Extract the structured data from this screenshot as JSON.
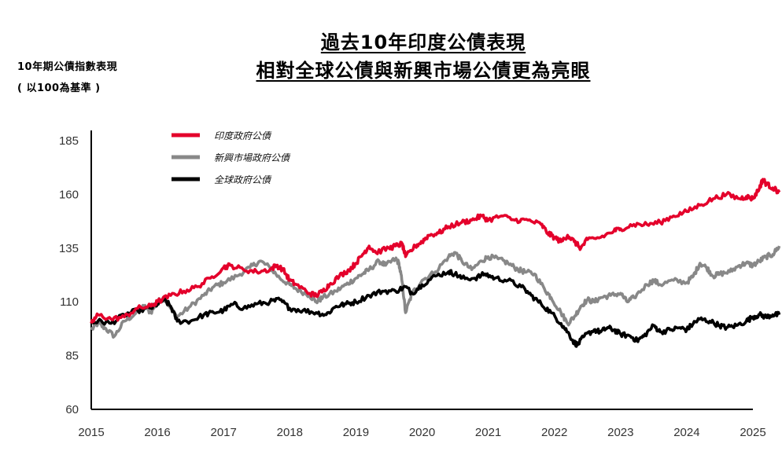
{
  "title_line1": "過去10年印度公債表現",
  "title_line2": "相對全球公債與新興市場公債更為亮眼",
  "chart_data": {
    "type": "line",
    "ylabel_line1": "10年期公債指數表現",
    "ylabel_line2": "( 以100為基準 )",
    "xlabel": "",
    "xlim": [
      2015,
      2025
    ],
    "ylim": [
      60,
      185
    ],
    "x_ticks": [
      2015,
      2016,
      2017,
      2018,
      2019,
      2020,
      2021,
      2022,
      2023,
      2024,
      2025
    ],
    "y_ticks": [
      60,
      85,
      110,
      135,
      160,
      185
    ],
    "grid": false,
    "legend_position": "top-left",
    "series": [
      {
        "name": "印度政府公債",
        "color": "#e4002b",
        "points": [
          [
            2015.0,
            100
          ],
          [
            2015.1,
            104
          ],
          [
            2015.3,
            102
          ],
          [
            2015.5,
            103
          ],
          [
            2015.7,
            107
          ],
          [
            2015.9,
            108
          ],
          [
            2016.0,
            110
          ],
          [
            2016.2,
            113
          ],
          [
            2016.4,
            115
          ],
          [
            2016.6,
            117
          ],
          [
            2016.8,
            121
          ],
          [
            2017.0,
            126
          ],
          [
            2017.1,
            127
          ],
          [
            2017.3,
            125
          ],
          [
            2017.5,
            124
          ],
          [
            2017.7,
            125
          ],
          [
            2017.8,
            127
          ],
          [
            2017.9,
            125
          ],
          [
            2018.0,
            120
          ],
          [
            2018.1,
            118
          ],
          [
            2018.3,
            114
          ],
          [
            2018.4,
            113
          ],
          [
            2018.5,
            115
          ],
          [
            2018.6,
            118
          ],
          [
            2018.75,
            122
          ],
          [
            2018.9,
            125
          ],
          [
            2019.0,
            128
          ],
          [
            2019.1,
            132
          ],
          [
            2019.2,
            136
          ],
          [
            2019.3,
            133
          ],
          [
            2019.5,
            135
          ],
          [
            2019.6,
            136
          ],
          [
            2019.7,
            137
          ],
          [
            2019.75,
            131
          ],
          [
            2019.9,
            136
          ],
          [
            2020.0,
            138
          ],
          [
            2020.1,
            141
          ],
          [
            2020.25,
            142
          ],
          [
            2020.4,
            145
          ],
          [
            2020.6,
            147
          ],
          [
            2020.75,
            148
          ],
          [
            2020.9,
            150
          ],
          [
            2021.0,
            148
          ],
          [
            2021.2,
            150
          ],
          [
            2021.4,
            148
          ],
          [
            2021.6,
            148
          ],
          [
            2021.8,
            146
          ],
          [
            2021.9,
            142
          ],
          [
            2022.0,
            140
          ],
          [
            2022.1,
            138
          ],
          [
            2022.2,
            141
          ],
          [
            2022.3,
            138
          ],
          [
            2022.4,
            135
          ],
          [
            2022.5,
            139
          ],
          [
            2022.7,
            140
          ],
          [
            2022.9,
            143
          ],
          [
            2023.0,
            144
          ],
          [
            2023.2,
            146
          ],
          [
            2023.4,
            146
          ],
          [
            2023.6,
            147
          ],
          [
            2023.8,
            150
          ],
          [
            2024.0,
            152
          ],
          [
            2024.2,
            155
          ],
          [
            2024.4,
            158
          ],
          [
            2024.6,
            160
          ],
          [
            2024.8,
            158
          ],
          [
            2024.9,
            159
          ],
          [
            2025.0,
            158
          ],
          [
            2025.1,
            163
          ],
          [
            2025.15,
            167
          ],
          [
            2025.2,
            165
          ],
          [
            2025.3,
            163
          ],
          [
            2025.4,
            161
          ]
        ]
      },
      {
        "name": "新興市場政府公債",
        "color": "#888888",
        "points": [
          [
            2015.0,
            97
          ],
          [
            2015.1,
            100
          ],
          [
            2015.2,
            98
          ],
          [
            2015.35,
            94
          ],
          [
            2015.5,
            101
          ],
          [
            2015.65,
            104
          ],
          [
            2015.8,
            108
          ],
          [
            2015.9,
            105
          ],
          [
            2016.0,
            110
          ],
          [
            2016.1,
            112
          ],
          [
            2016.2,
            107
          ],
          [
            2016.3,
            103
          ],
          [
            2016.5,
            108
          ],
          [
            2016.7,
            113
          ],
          [
            2016.85,
            117
          ],
          [
            2017.0,
            119
          ],
          [
            2017.2,
            122
          ],
          [
            2017.4,
            126
          ],
          [
            2017.55,
            129
          ],
          [
            2017.7,
            126
          ],
          [
            2017.85,
            121
          ],
          [
            2018.0,
            118
          ],
          [
            2018.1,
            116
          ],
          [
            2018.3,
            113
          ],
          [
            2018.4,
            110
          ],
          [
            2018.5,
            112
          ],
          [
            2018.7,
            115
          ],
          [
            2018.85,
            118
          ],
          [
            2019.0,
            121
          ],
          [
            2019.1,
            123
          ],
          [
            2019.2,
            125
          ],
          [
            2019.35,
            129
          ],
          [
            2019.45,
            127
          ],
          [
            2019.6,
            130
          ],
          [
            2019.65,
            128
          ],
          [
            2019.7,
            119
          ],
          [
            2019.75,
            105
          ],
          [
            2019.85,
            114
          ],
          [
            2020.0,
            120
          ],
          [
            2020.2,
            124
          ],
          [
            2020.4,
            131
          ],
          [
            2020.5,
            133
          ],
          [
            2020.6,
            129
          ],
          [
            2020.75,
            125
          ],
          [
            2020.9,
            129
          ],
          [
            2021.0,
            131
          ],
          [
            2021.15,
            130
          ],
          [
            2021.3,
            128
          ],
          [
            2021.45,
            125
          ],
          [
            2021.55,
            124
          ],
          [
            2021.7,
            123
          ],
          [
            2021.85,
            116
          ],
          [
            2021.95,
            112
          ],
          [
            2022.1,
            105
          ],
          [
            2022.2,
            100
          ],
          [
            2022.3,
            103
          ],
          [
            2022.4,
            108
          ],
          [
            2022.5,
            111
          ],
          [
            2022.6,
            110
          ],
          [
            2022.7,
            112
          ],
          [
            2022.85,
            113
          ],
          [
            2023.0,
            114
          ],
          [
            2023.1,
            110
          ],
          [
            2023.2,
            112
          ],
          [
            2023.4,
            118
          ],
          [
            2023.5,
            120
          ],
          [
            2023.6,
            118
          ],
          [
            2023.8,
            120
          ],
          [
            2024.0,
            119
          ],
          [
            2024.1,
            122
          ],
          [
            2024.2,
            128
          ],
          [
            2024.3,
            126
          ],
          [
            2024.4,
            122
          ],
          [
            2024.5,
            123
          ],
          [
            2024.65,
            124
          ],
          [
            2024.8,
            127
          ],
          [
            2024.9,
            128
          ],
          [
            2025.0,
            127
          ],
          [
            2025.1,
            129
          ],
          [
            2025.2,
            131
          ],
          [
            2025.3,
            132
          ],
          [
            2025.4,
            136
          ]
        ]
      },
      {
        "name": "全球政府公債",
        "color": "#000000",
        "points": [
          [
            2015.0,
            100
          ],
          [
            2015.1,
            101
          ],
          [
            2015.3,
            100
          ],
          [
            2015.5,
            104
          ],
          [
            2015.7,
            106
          ],
          [
            2015.9,
            107
          ],
          [
            2016.0,
            109
          ],
          [
            2016.1,
            111
          ],
          [
            2016.2,
            108
          ],
          [
            2016.3,
            101
          ],
          [
            2016.5,
            101
          ],
          [
            2016.7,
            104
          ],
          [
            2016.85,
            105
          ],
          [
            2017.0,
            106
          ],
          [
            2017.15,
            109
          ],
          [
            2017.3,
            107
          ],
          [
            2017.5,
            109
          ],
          [
            2017.7,
            110
          ],
          [
            2017.85,
            111
          ],
          [
            2018.0,
            107
          ],
          [
            2018.2,
            106
          ],
          [
            2018.4,
            105
          ],
          [
            2018.55,
            104
          ],
          [
            2018.7,
            108
          ],
          [
            2018.85,
            109
          ],
          [
            2019.0,
            110
          ],
          [
            2019.2,
            113
          ],
          [
            2019.4,
            115
          ],
          [
            2019.6,
            115
          ],
          [
            2019.75,
            117
          ],
          [
            2019.85,
            114
          ],
          [
            2020.0,
            118
          ],
          [
            2020.2,
            122
          ],
          [
            2020.4,
            124
          ],
          [
            2020.5,
            123
          ],
          [
            2020.6,
            121
          ],
          [
            2020.8,
            121
          ],
          [
            2020.95,
            123
          ],
          [
            2021.1,
            121
          ],
          [
            2021.3,
            120
          ],
          [
            2021.5,
            117
          ],
          [
            2021.65,
            113
          ],
          [
            2021.8,
            109
          ],
          [
            2021.95,
            105
          ],
          [
            2022.1,
            100
          ],
          [
            2022.2,
            96
          ],
          [
            2022.3,
            91
          ],
          [
            2022.35,
            90
          ],
          [
            2022.45,
            94
          ],
          [
            2022.6,
            97
          ],
          [
            2022.7,
            96
          ],
          [
            2022.8,
            98
          ],
          [
            2022.9,
            97
          ],
          [
            2023.0,
            95
          ],
          [
            2023.15,
            94
          ],
          [
            2023.25,
            92
          ],
          [
            2023.35,
            94
          ],
          [
            2023.5,
            99
          ],
          [
            2023.6,
            96
          ],
          [
            2023.75,
            97
          ],
          [
            2023.9,
            98
          ],
          [
            2024.0,
            97
          ],
          [
            2024.1,
            100
          ],
          [
            2024.2,
            102
          ],
          [
            2024.35,
            101
          ],
          [
            2024.5,
            99
          ],
          [
            2024.6,
            98
          ],
          [
            2024.75,
            99
          ],
          [
            2024.9,
            101
          ],
          [
            2025.0,
            103
          ],
          [
            2025.1,
            104
          ],
          [
            2025.2,
            103
          ],
          [
            2025.3,
            104
          ],
          [
            2025.4,
            104
          ]
        ]
      }
    ]
  }
}
